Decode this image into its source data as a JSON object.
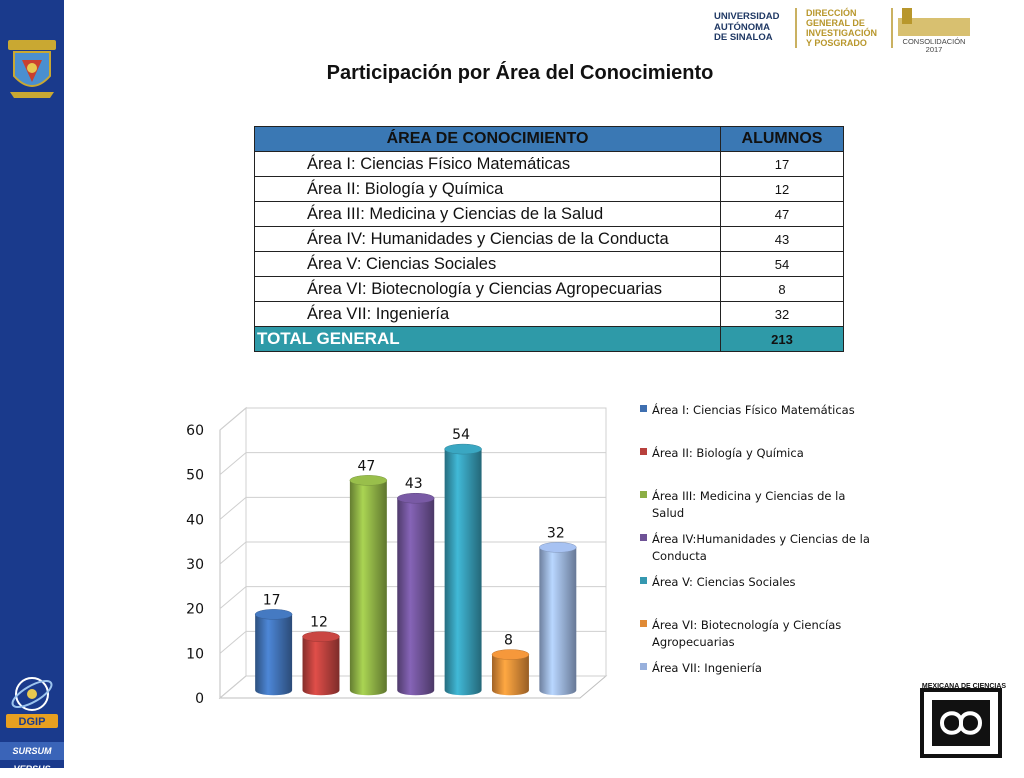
{
  "header": {
    "university": "UNIVERSIDAD\nAUTÓNOMA\nDE SINALOA",
    "direction": "DIRECCIÓN\nGENERAL DE\nINVESTIGACIÓN\nY POSGRADO",
    "consolidation": "CONSOLIDACIÓN",
    "consolidation_year": "2017"
  },
  "sidebar": {
    "motto": "SURSUM VERSUS",
    "dgip_label": "DGIP"
  },
  "title": "Participación por Área del Conocimiento",
  "table": {
    "headers": [
      "ÁREA DE CONOCIMIENTO",
      "ALUMNOS"
    ],
    "rows": [
      {
        "area": "Área I: Ciencias Físico Matemáticas",
        "alumnos": "17"
      },
      {
        "area": "Área II: Biología y Química",
        "alumnos": "12"
      },
      {
        "area": "Área III: Medicina y Ciencias de la Salud",
        "alumnos": "47"
      },
      {
        "area": "Área IV: Humanidades y Ciencias de la Conducta",
        "alumnos": "43"
      },
      {
        "area": "Área V: Ciencias Sociales",
        "alumnos": "54"
      },
      {
        "area": "Área VI: Biotecnología y Ciencias Agropecuarias",
        "alumnos": "8"
      },
      {
        "area": "Área VII: Ingeniería",
        "alumnos": "32"
      }
    ],
    "total_label": "TOTAL GENERAL",
    "total_value": "213"
  },
  "chart_data": {
    "type": "bar",
    "categories": [
      "Área I",
      "Área II",
      "Área III",
      "Área IV",
      "Área V",
      "Área VI",
      "Área VII"
    ],
    "series": [
      {
        "name": "Área I: Ciencias Físico Matemáticas",
        "value": 17,
        "color": "#3f6fb0"
      },
      {
        "name": "Área II: Biología y Química",
        "value": 12,
        "color": "#b8403c"
      },
      {
        "name": "Área III: Medicina y Ciencias de la Salud",
        "value": 47,
        "color": "#8bae44"
      },
      {
        "name": "Área IV:Humanidades y Ciencias de la Conducta",
        "value": 43,
        "color": "#6e5296"
      },
      {
        "name": "Área V: Ciencias Sociales",
        "value": 54,
        "color": "#3598b0"
      },
      {
        "name": "Área VI: Biotecnología y Ciencías Agropecuarias",
        "value": 8,
        "color": "#e08a36"
      },
      {
        "name": "Área VII: Ingeniería",
        "value": 32,
        "color": "#98b0dc"
      }
    ],
    "yticks": [
      "0",
      "10",
      "20",
      "30",
      "40",
      "50",
      "60"
    ],
    "ylim": [
      0,
      60
    ],
    "legend_position": "right",
    "grid": true,
    "style": "3d-cylinder"
  }
}
